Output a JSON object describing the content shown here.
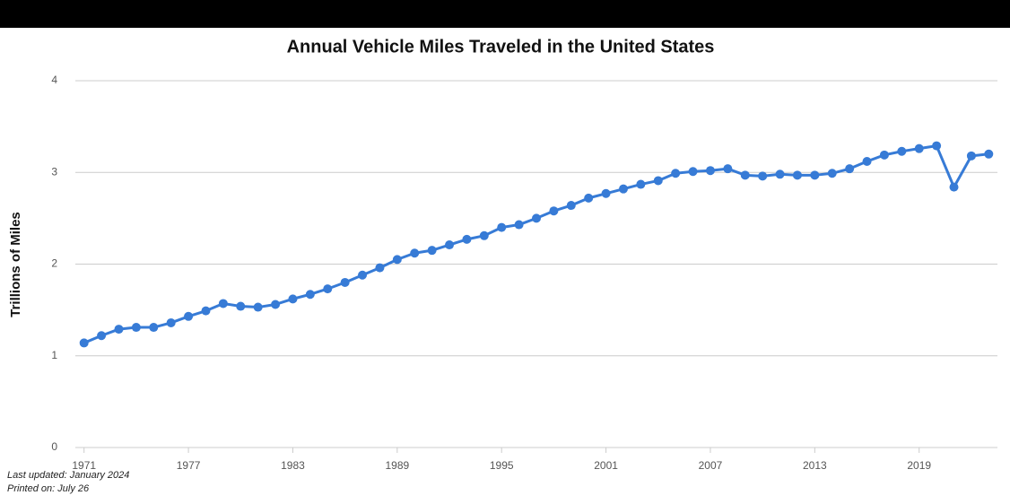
{
  "chart_data": {
    "type": "line",
    "title": "Annual Vehicle Miles Traveled in the United States",
    "y_label": "Trillions of Miles",
    "x": [
      1971,
      1972,
      1973,
      1974,
      1975,
      1976,
      1977,
      1978,
      1979,
      1980,
      1981,
      1982,
      1983,
      1984,
      1985,
      1986,
      1987,
      1988,
      1989,
      1990,
      1991,
      1992,
      1993,
      1994,
      1995,
      1996,
      1997,
      1998,
      1999,
      2000,
      2001,
      2002,
      2003,
      2004,
      2005,
      2006,
      2007,
      2008,
      2009,
      2010,
      2011,
      2012,
      2013,
      2014,
      2015,
      2016,
      2017,
      2018,
      2019,
      2020,
      2021,
      2022,
      2023
    ],
    "series": [
      {
        "name": "Vehicle Miles Traveled",
        "color": "#377bd6",
        "values": [
          1.14,
          1.22,
          1.29,
          1.31,
          1.31,
          1.36,
          1.43,
          1.49,
          1.57,
          1.54,
          1.53,
          1.56,
          1.62,
          1.67,
          1.73,
          1.8,
          1.88,
          1.96,
          2.05,
          2.12,
          2.15,
          2.21,
          2.27,
          2.31,
          2.4,
          2.43,
          2.5,
          2.58,
          2.64,
          2.72,
          2.77,
          2.82,
          2.87,
          2.91,
          2.99,
          3.01,
          3.02,
          3.04,
          2.97,
          2.96,
          2.98,
          2.97,
          2.97,
          2.99,
          3.04,
          3.12,
          3.19,
          3.23,
          3.26,
          3.29,
          2.84,
          3.18,
          3.2
        ]
      }
    ],
    "xlim": [
      1970.5,
      2023.5
    ],
    "xticks": [
      1971,
      1977,
      1983,
      1989,
      1995,
      2001,
      2007,
      2013,
      2019
    ],
    "ylim": [
      0,
      4
    ],
    "yticks": [
      0,
      1,
      2,
      3,
      4
    ],
    "grid": true,
    "notes": [
      "Last updated: January 2024",
      "Printed on: July 26"
    ]
  }
}
